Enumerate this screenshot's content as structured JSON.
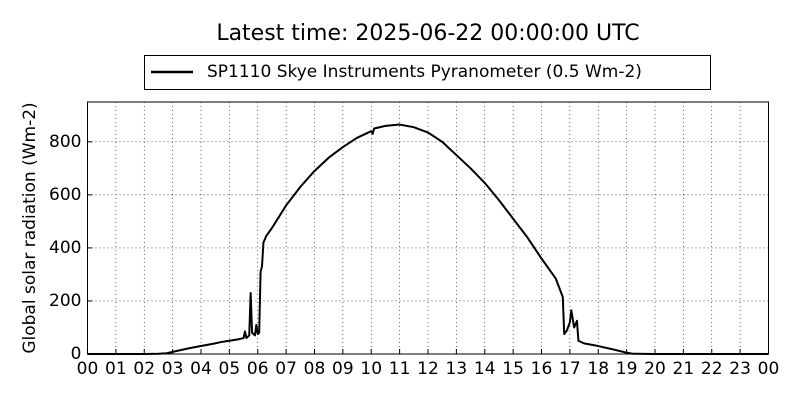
{
  "chart_data": {
    "type": "line",
    "title": "Latest time: 2025-06-22 00:00:00 UTC",
    "y_label": "Global solar radiation (Wm-2)",
    "series": [
      {
        "name": "SP1110 Skye Instruments Pyranometer (0.5 Wm-2)",
        "color": "#000000",
        "x": [
          0,
          1,
          2,
          2.5,
          2.8,
          3,
          3.3,
          3.6,
          4,
          4.5,
          4.7,
          5,
          5.3,
          5.5,
          5.55,
          5.6,
          5.7,
          5.75,
          5.8,
          5.9,
          5.95,
          6,
          6.05,
          6.1,
          6.15,
          6.2,
          6.3,
          6.5,
          7,
          7.5,
          8,
          8.5,
          9,
          9.5,
          10,
          10.05,
          10.1,
          10.5,
          11,
          11.5,
          12,
          12.5,
          12.7,
          13,
          13.5,
          14,
          14.5,
          15,
          15.5,
          16,
          16.5,
          16.75,
          16.8,
          16.9,
          17,
          17.05,
          17.15,
          17.25,
          17.3,
          17.5,
          18,
          18.5,
          19,
          19.2,
          20,
          21,
          22,
          23,
          24
        ],
        "values": [
          0,
          0,
          0,
          1,
          3,
          8,
          15,
          22,
          30,
          40,
          45,
          50,
          55,
          60,
          85,
          60,
          70,
          230,
          80,
          70,
          110,
          75,
          80,
          310,
          330,
          420,
          445,
          475,
          560,
          630,
          690,
          740,
          780,
          815,
          840,
          830,
          850,
          860,
          865,
          855,
          835,
          800,
          780,
          750,
          700,
          645,
          580,
          510,
          440,
          360,
          285,
          215,
          75,
          90,
          120,
          165,
          100,
          125,
          50,
          40,
          30,
          18,
          5,
          1,
          0,
          0,
          0,
          0,
          0
        ]
      }
    ],
    "xlim": [
      0,
      24
    ],
    "xticks": [
      {
        "value": 0,
        "label": "00"
      },
      {
        "value": 1,
        "label": "01"
      },
      {
        "value": 2,
        "label": "02"
      },
      {
        "value": 3,
        "label": "03"
      },
      {
        "value": 4,
        "label": "04"
      },
      {
        "value": 5,
        "label": "05"
      },
      {
        "value": 6,
        "label": "06"
      },
      {
        "value": 7,
        "label": "07"
      },
      {
        "value": 8,
        "label": "08"
      },
      {
        "value": 9,
        "label": "09"
      },
      10,
      11,
      12,
      13,
      14,
      15,
      16,
      17,
      18,
      19,
      20,
      21,
      22,
      23,
      {
        "value": 24,
        "label": "00"
      }
    ],
    "ylim": [
      0,
      950
    ],
    "yticks": [
      0,
      200,
      400,
      600,
      800
    ],
    "grid": true
  }
}
